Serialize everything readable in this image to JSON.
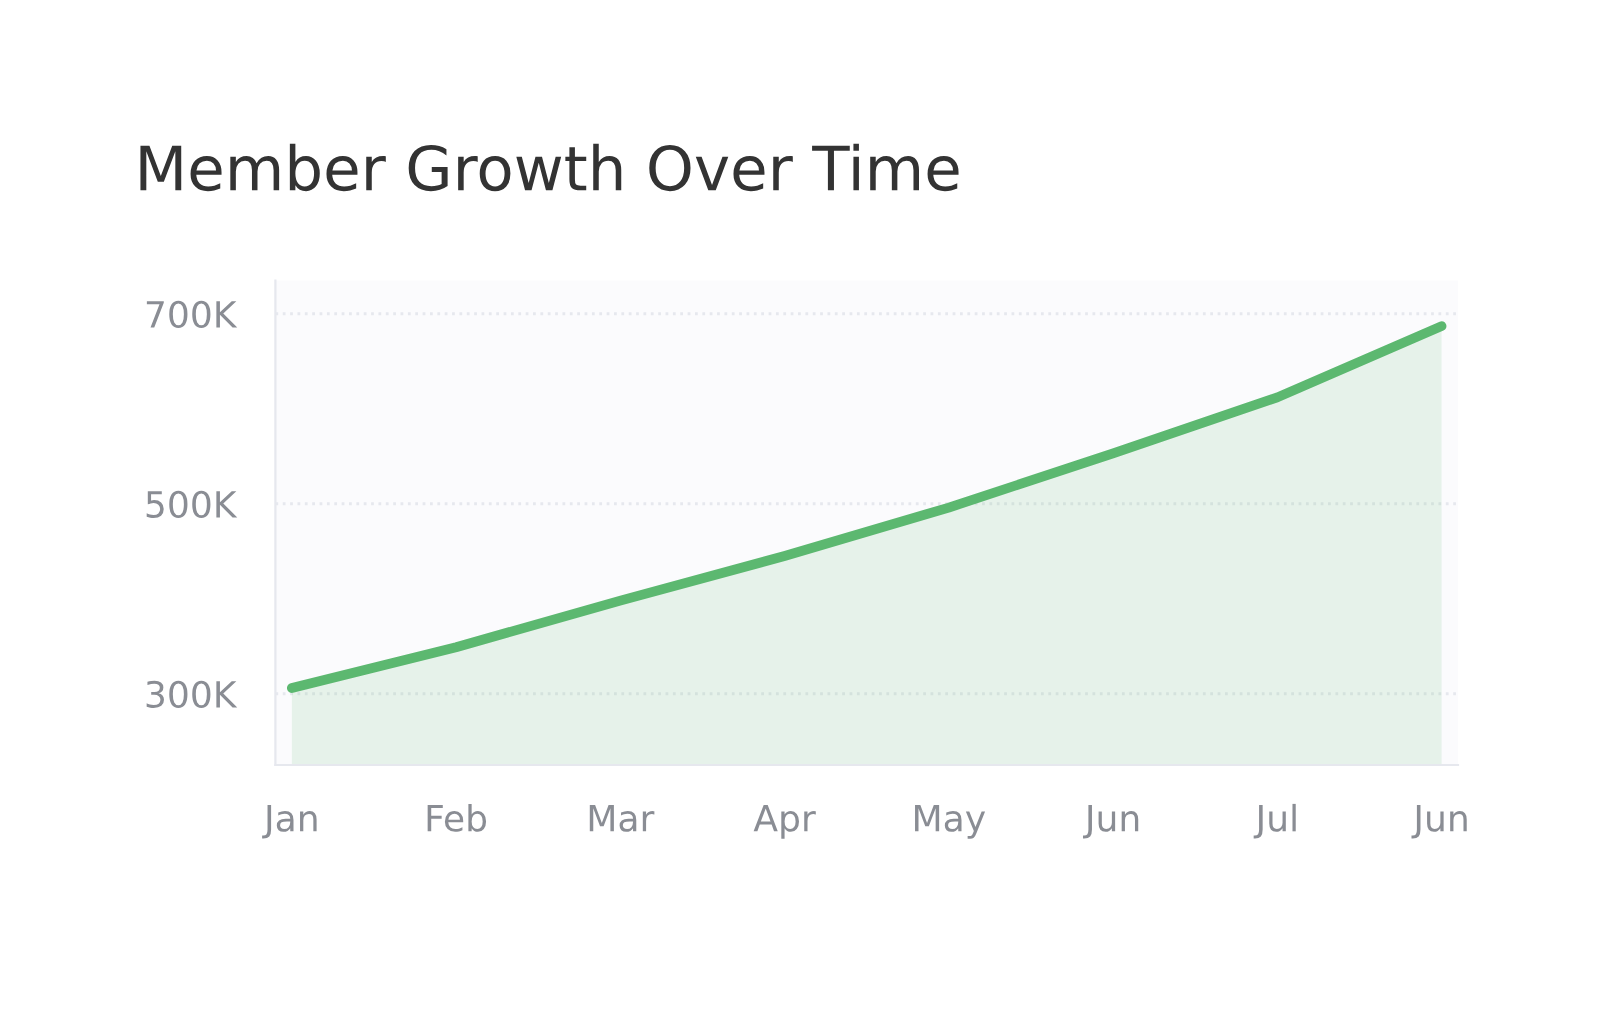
{
  "chart_data": {
    "type": "area",
    "title": "Member Growth Over Time",
    "categories": [
      "Jan",
      "Feb",
      "Mar",
      "Apr",
      "May",
      "Jun",
      "Jul",
      "Jun"
    ],
    "series": [
      {
        "color": "#5cb870",
        "values": [
          306000,
          349000,
          398000,
          445000,
          496000,
          553000,
          612000,
          687000
        ]
      }
    ],
    "ylim": [
      225000,
      735000
    ],
    "yticks": [
      {
        "value": 300000,
        "label": "300K"
      },
      {
        "value": 500000,
        "label": "500K"
      },
      {
        "value": 700000,
        "label": "700K"
      }
    ],
    "grid": "y",
    "marker": "none",
    "line_style": "solid"
  }
}
